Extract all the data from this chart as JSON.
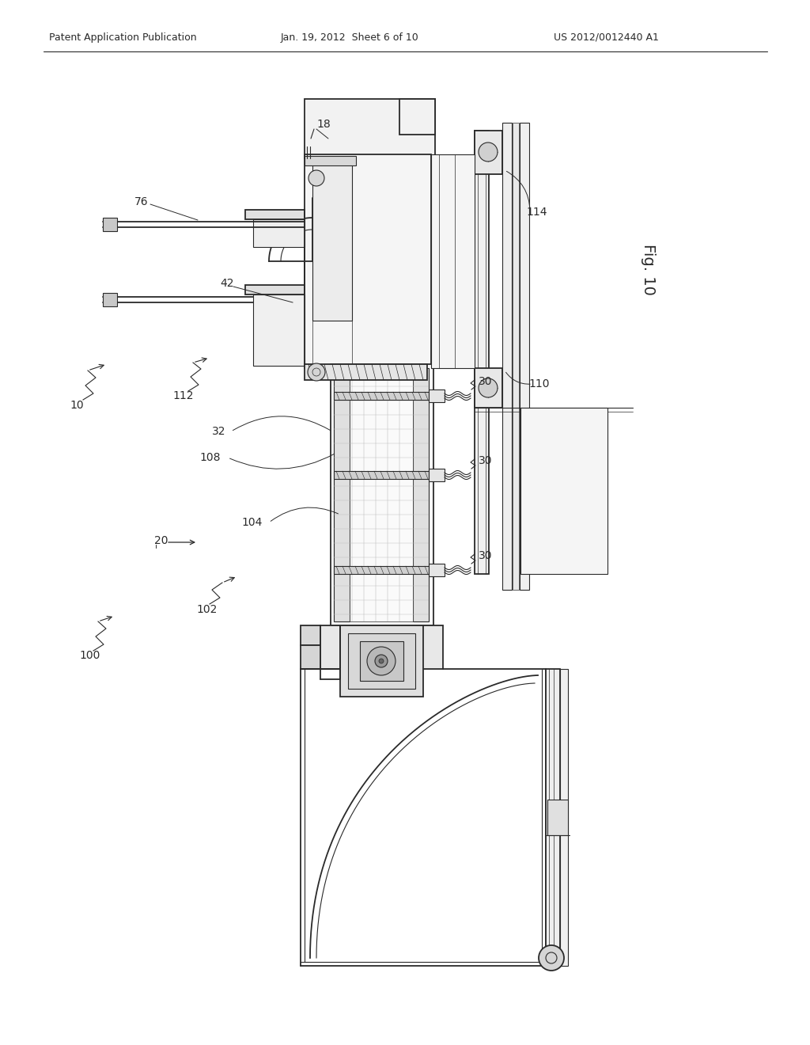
{
  "background_color": "#ffffff",
  "line_color": "#2a2a2a",
  "header_text": "Patent Application Publication",
  "header_date": "Jan. 19, 2012  Sheet 6 of 10",
  "header_patent": "US 2012/0012440 A1",
  "fig_label": "Fig. 10",
  "title_color": "#1a1a1a"
}
